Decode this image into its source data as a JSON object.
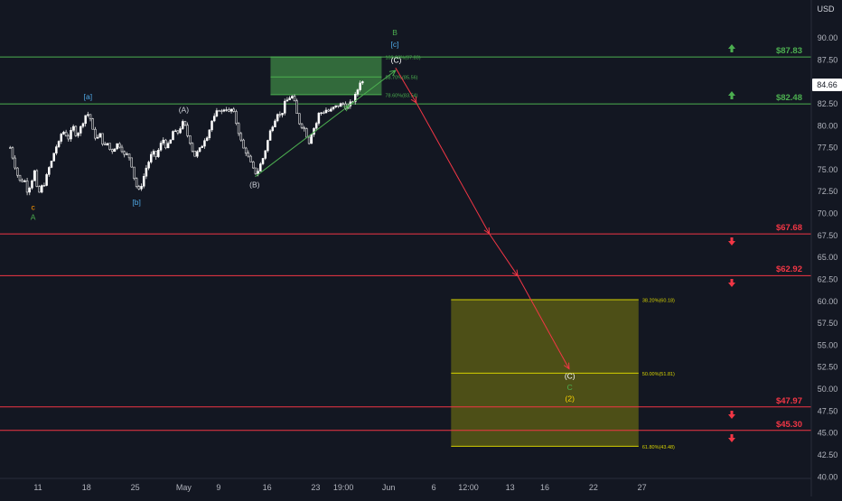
{
  "chart_data": {
    "type": "candlestick-with-annotations",
    "currency": "USD",
    "last_price": "84.66",
    "y_axis": {
      "range": [
        39,
        93.5
      ],
      "ticks": [
        "90.00",
        "87.50",
        "85.00",
        "82.50",
        "80.00",
        "77.50",
        "75.00",
        "72.50",
        "70.00",
        "67.50",
        "65.00",
        "62.50",
        "60.00",
        "57.50",
        "55.00",
        "52.50",
        "50.00",
        "47.50",
        "45.00",
        "42.50",
        "40.00"
      ]
    },
    "x_axis": {
      "ticks": [
        {
          "label": "11",
          "day": 11
        },
        {
          "label": "18",
          "day": 18
        },
        {
          "label": "25",
          "day": 25
        },
        {
          "label": "May",
          "day": 32
        },
        {
          "label": "9",
          "day": 37
        },
        {
          "label": "16",
          "day": 44
        },
        {
          "label": "23",
          "day": 51
        },
        {
          "label": "19:00",
          "day": 55
        },
        {
          "label": "Jun",
          "day": 61.5
        },
        {
          "label": "6",
          "day": 68
        },
        {
          "label": "12:00",
          "day": 73
        },
        {
          "label": "13",
          "day": 79
        },
        {
          "label": "16",
          "day": 84
        },
        {
          "label": "22",
          "day": 91
        },
        {
          "label": "27",
          "day": 98
        }
      ]
    },
    "price_path": [
      [
        7.0,
        77.5
      ],
      [
        7.5,
        76
      ],
      [
        8,
        74.5
      ],
      [
        8.5,
        73.5
      ],
      [
        9,
        74
      ],
      [
        9.5,
        72.5
      ],
      [
        10,
        73.5
      ],
      [
        10.5,
        74.8
      ],
      [
        11,
        72
      ],
      [
        11.5,
        73
      ],
      [
        12,
        73.5
      ],
      [
        12.5,
        75
      ],
      [
        13,
        76
      ],
      [
        13.5,
        77.5
      ],
      [
        14,
        78
      ],
      [
        14.5,
        79.5
      ],
      [
        15,
        79
      ],
      [
        15.5,
        78.5
      ],
      [
        16,
        80
      ],
      [
        16.5,
        79
      ],
      [
        17,
        79.5
      ],
      [
        17.5,
        80.5
      ],
      [
        18,
        81.5
      ],
      [
        18.5,
        81
      ],
      [
        19,
        79
      ],
      [
        19.5,
        78.5
      ],
      [
        20,
        79
      ],
      [
        20.5,
        77.5
      ],
      [
        21,
        78
      ],
      [
        21.5,
        77
      ],
      [
        22,
        77.5
      ],
      [
        22.5,
        78
      ],
      [
        23,
        77.5
      ],
      [
        23.5,
        76.5
      ],
      [
        24,
        76.8
      ],
      [
        24.5,
        75.5
      ],
      [
        25,
        73.5
      ],
      [
        25.5,
        72.5
      ],
      [
        26,
        73.5
      ],
      [
        26.5,
        75
      ],
      [
        27,
        76
      ],
      [
        27.5,
        77
      ],
      [
        28,
        76.5
      ],
      [
        28.5,
        77.5
      ],
      [
        29,
        78.5
      ],
      [
        29.5,
        77.5
      ],
      [
        30,
        78
      ],
      [
        30.5,
        79.5
      ],
      [
        31,
        79
      ],
      [
        31.5,
        79.8
      ],
      [
        32,
        80.5
      ],
      [
        32.5,
        79
      ],
      [
        33,
        78
      ],
      [
        33.5,
        76.5
      ],
      [
        34,
        77
      ],
      [
        34.5,
        77.5
      ],
      [
        35,
        78.5
      ],
      [
        35.5,
        79
      ],
      [
        36,
        80.5
      ],
      [
        36.5,
        81
      ],
      [
        37,
        82
      ],
      [
        37.5,
        81.5
      ],
      [
        38,
        82.2
      ],
      [
        38.5,
        81.5
      ],
      [
        39,
        82
      ],
      [
        39.5,
        80.5
      ],
      [
        40,
        79
      ],
      [
        40.5,
        77.5
      ],
      [
        41,
        77
      ],
      [
        41.5,
        76
      ],
      [
        42,
        75
      ],
      [
        42.5,
        74.5
      ],
      [
        43,
        75.5
      ],
      [
        43.5,
        76.5
      ],
      [
        44,
        78
      ],
      [
        44.5,
        79.5
      ],
      [
        45,
        80.5
      ],
      [
        45.5,
        81.5
      ],
      [
        46,
        81
      ],
      [
        46.5,
        82.5
      ],
      [
        47,
        83
      ],
      [
        47.5,
        83.5
      ],
      [
        48,
        82.5
      ],
      [
        48.5,
        80.5
      ],
      [
        49,
        80
      ],
      [
        49.5,
        79.5
      ],
      [
        50,
        78
      ],
      [
        50.5,
        79.5
      ],
      [
        51,
        80
      ],
      [
        51.5,
        81.5
      ],
      [
        52,
        81.5
      ],
      [
        52.5,
        81.8
      ],
      [
        53,
        81.6
      ],
      [
        53.5,
        82
      ],
      [
        54,
        82.2
      ],
      [
        54.5,
        82.4
      ],
      [
        55,
        82.5
      ],
      [
        55.5,
        82
      ],
      [
        56,
        82.5
      ],
      [
        56.5,
        83
      ],
      [
        57,
        84
      ],
      [
        57.5,
        85.3
      ],
      [
        58,
        84.66
      ]
    ],
    "horizontal_levels": [
      {
        "price": 87.83,
        "label": "$87.83",
        "color": "#4caf50",
        "arrow": "up"
      },
      {
        "price": 82.48,
        "label": "$82.48",
        "color": "#4caf50",
        "arrow": "up"
      },
      {
        "price": 67.68,
        "label": "$67.68",
        "color": "#f23645",
        "arrow": "down"
      },
      {
        "price": 62.92,
        "label": "$62.92",
        "color": "#f23645",
        "arrow": "down"
      },
      {
        "price": 47.97,
        "label": "$47.97",
        "color": "#f23645",
        "arrow": "down"
      },
      {
        "price": 45.3,
        "label": "$45.30",
        "color": "#f23645",
        "arrow": "down"
      }
    ],
    "green_fib_box": {
      "x0": 44.5,
      "x1": 60.5,
      "levels": [
        {
          "price": 87.83,
          "label": "100.00%(87.83)"
        },
        {
          "price": 85.56,
          "label": "88.70%(85.56)"
        },
        {
          "price": 83.54,
          "label": "78.60%(83.54)"
        }
      ],
      "color": "#4caf50"
    },
    "yellow_fib_box": {
      "x0": 70.5,
      "x1": 97.5,
      "levels": [
        {
          "price": 60.18,
          "label": "38.20%(60.18)"
        },
        {
          "price": 51.81,
          "label": "50.00%(51.81)"
        },
        {
          "price": 43.48,
          "label": "61.80%(43.48)"
        }
      ],
      "color": "#d4d000"
    },
    "green_arrows": [
      {
        "from": [
          42.3,
          74.2
        ],
        "to": [
          55.8,
          82.3
        ]
      },
      {
        "from": [
          55.8,
          82.3
        ],
        "to": [
          62.5,
          86.3
        ]
      }
    ],
    "projection_path": [
      [
        62.5,
        86.6
      ],
      [
        65.5,
        82.6
      ],
      [
        76.0,
        67.7
      ],
      [
        80.1,
        62.9
      ],
      [
        87.5,
        52.3
      ]
    ],
    "wave_labels": [
      {
        "text": "c",
        "day": 10.3,
        "price": 70.4,
        "color": "#ff9800"
      },
      {
        "text": "A",
        "day": 10.3,
        "price": 69.3,
        "color": "#4caf50"
      },
      {
        "text": "[a]",
        "day": 18.2,
        "price": 83.0,
        "color": "#4fa9e6"
      },
      {
        "text": "[b]",
        "day": 25.2,
        "price": 71.0,
        "color": "#4fa9e6"
      },
      {
        "text": "(A)",
        "day": 32.0,
        "price": 81.5,
        "color": "#d1d4dc"
      },
      {
        "text": "(B)",
        "day": 42.2,
        "price": 73.0,
        "color": "#d1d4dc"
      },
      {
        "text": "B",
        "day": 62.4,
        "price": 90.3,
        "color": "#4caf50"
      },
      {
        "text": "[c]",
        "day": 62.4,
        "price": 89.0,
        "color": "#4fa9e6"
      },
      {
        "text": "(C)",
        "day": 62.6,
        "price": 87.2,
        "color": "#ffffff"
      },
      {
        "text": "(C)",
        "day": 87.6,
        "price": 51.2,
        "color": "#ffffff"
      },
      {
        "text": "C",
        "day": 87.6,
        "price": 49.9,
        "color": "#4caf50"
      },
      {
        "text": "(2)",
        "day": 87.6,
        "price": 48.6,
        "color": "#ffd700"
      }
    ]
  }
}
